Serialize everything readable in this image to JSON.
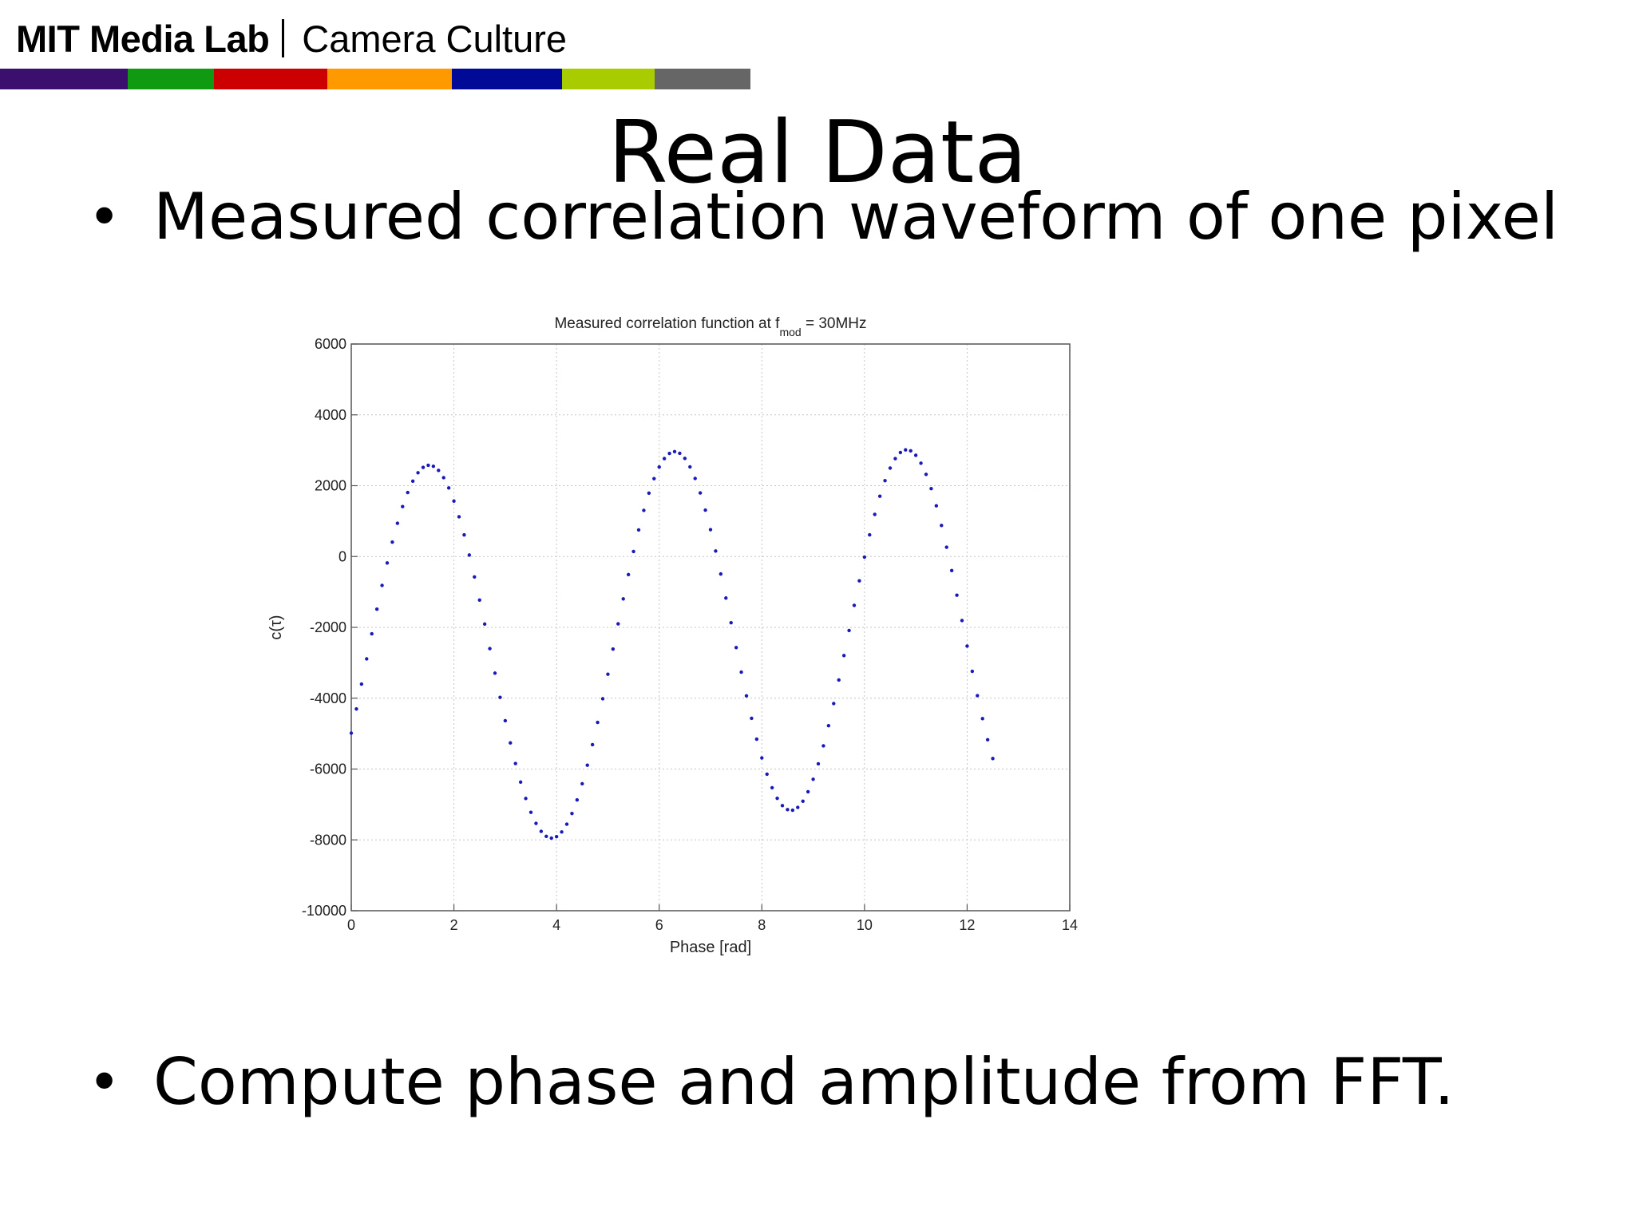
{
  "header": {
    "brand": "MIT Media Lab",
    "group": "Camera Culture",
    "stripe_colors": [
      "#3b0f6e",
      "#0f9a12",
      "#cc0000",
      "#ff9900",
      "#000a96",
      "#a8cc00",
      "#666666"
    ]
  },
  "slide": {
    "title": "Real Data",
    "bullets": [
      "Measured correlation waveform of one pixel",
      "Compute phase and amplitude from FFT."
    ],
    "bullet_symbol": "•"
  },
  "chart_data": {
    "type": "scatter",
    "title": "Measured correlation function at f",
    "title_sub": "mod",
    "title_tail": " = 30MHz",
    "xlabel": "Phase [rad]",
    "ylabel": "c(τ)",
    "xlim": [
      0,
      14
    ],
    "ylim": [
      -10000,
      6000
    ],
    "xticks": [
      0,
      2,
      4,
      6,
      8,
      10,
      12,
      14
    ],
    "yticks": [
      6000,
      4000,
      2000,
      0,
      -2000,
      -4000,
      -6000,
      -8000,
      -10000
    ],
    "grid": true,
    "marker_color": "#1a1ab8",
    "series": [
      {
        "x": [
          0.0,
          0.1,
          0.2,
          0.3,
          0.4,
          0.5,
          0.6,
          0.7,
          0.8,
          0.9,
          1.0,
          1.1,
          1.2,
          1.3,
          1.4,
          1.5,
          1.6,
          1.7,
          1.8,
          1.9,
          2.0,
          2.1,
          2.2,
          2.3,
          2.4,
          2.5,
          2.6,
          2.7,
          2.8,
          2.9,
          3.0,
          3.1,
          3.2,
          3.3,
          3.4,
          3.5,
          3.6,
          3.7,
          3.8,
          3.9,
          4.0,
          4.1,
          4.2,
          4.3,
          4.4,
          4.5,
          4.6,
          4.7,
          4.8,
          4.9,
          5.0,
          5.1,
          5.2,
          5.3,
          5.4,
          5.5,
          5.6,
          5.7,
          5.8,
          5.9,
          6.0,
          6.1,
          6.2,
          6.3,
          6.4,
          6.5,
          6.6,
          6.7,
          6.8,
          6.9,
          7.0,
          7.1,
          7.2,
          7.3,
          7.4,
          7.5,
          7.6,
          7.7,
          7.8,
          7.9,
          8.0,
          8.1,
          8.2,
          8.3,
          8.4,
          8.5,
          8.6,
          8.7,
          8.8,
          8.9,
          9.0,
          9.1,
          9.2,
          9.3,
          9.4,
          9.5,
          9.6,
          9.7,
          9.8,
          9.9,
          10.0,
          10.1,
          10.2,
          10.3,
          10.4,
          10.5,
          10.6,
          10.7,
          10.8,
          10.9,
          11.0,
          11.1,
          11.2,
          11.3,
          11.4,
          11.5,
          11.6,
          11.7,
          11.8,
          11.9,
          12.0,
          12.1,
          12.2,
          12.3,
          12.4,
          12.5
        ],
        "y": [
          -4986,
          -4304,
          -3601,
          -2890,
          -2181,
          -1486,
          -816,
          -182,
          406,
          940,
          1409,
          1808,
          2128,
          2365,
          2516,
          2577,
          2549,
          2431,
          2226,
          1936,
          1566,
          1122,
          611,
          42,
          -575,
          -1229,
          -1907,
          -2600,
          -3293,
          -3976,
          -4636,
          -5262,
          -5843,
          -6369,
          -6831,
          -7221,
          -7533,
          -7760,
          -7900,
          -7950,
          -7908,
          -7777,
          -7557,
          -7254,
          -6871,
          -6415,
          -5892,
          -5312,
          -4683,
          -4016,
          -3322,
          -2613,
          -1900,
          -1195,
          -510,
          143,
          751,
          1303,
          1789,
          2199,
          2527,
          2766,
          2912,
          2962,
          2914,
          2770,
          2532,
          2205,
          1795,
          1310,
          760,
          155,
          -493,
          -1172,
          -1869,
          -2570,
          -3263,
          -3933,
          -4568,
          -5156,
          -5685,
          -6145,
          -6528,
          -6826,
          -7033,
          -7146,
          -7163,
          -7083,
          -6908,
          -6642,
          -6288,
          -5853,
          -5346,
          -4775,
          -4151,
          -3487,
          -2795,
          -2088,
          -1380,
          -685,
          -17,
          612,
          1189,
          1702,
          2141,
          2498,
          2765,
          2937,
          3011,
          2985,
          2859,
          2636,
          2320,
          1916,
          1432,
          877,
          263,
          -397,
          -1092,
          -1808,
          -2529,
          -3240,
          -3928,
          -4577,
          -5173,
          -5704
        ]
      }
    ]
  }
}
